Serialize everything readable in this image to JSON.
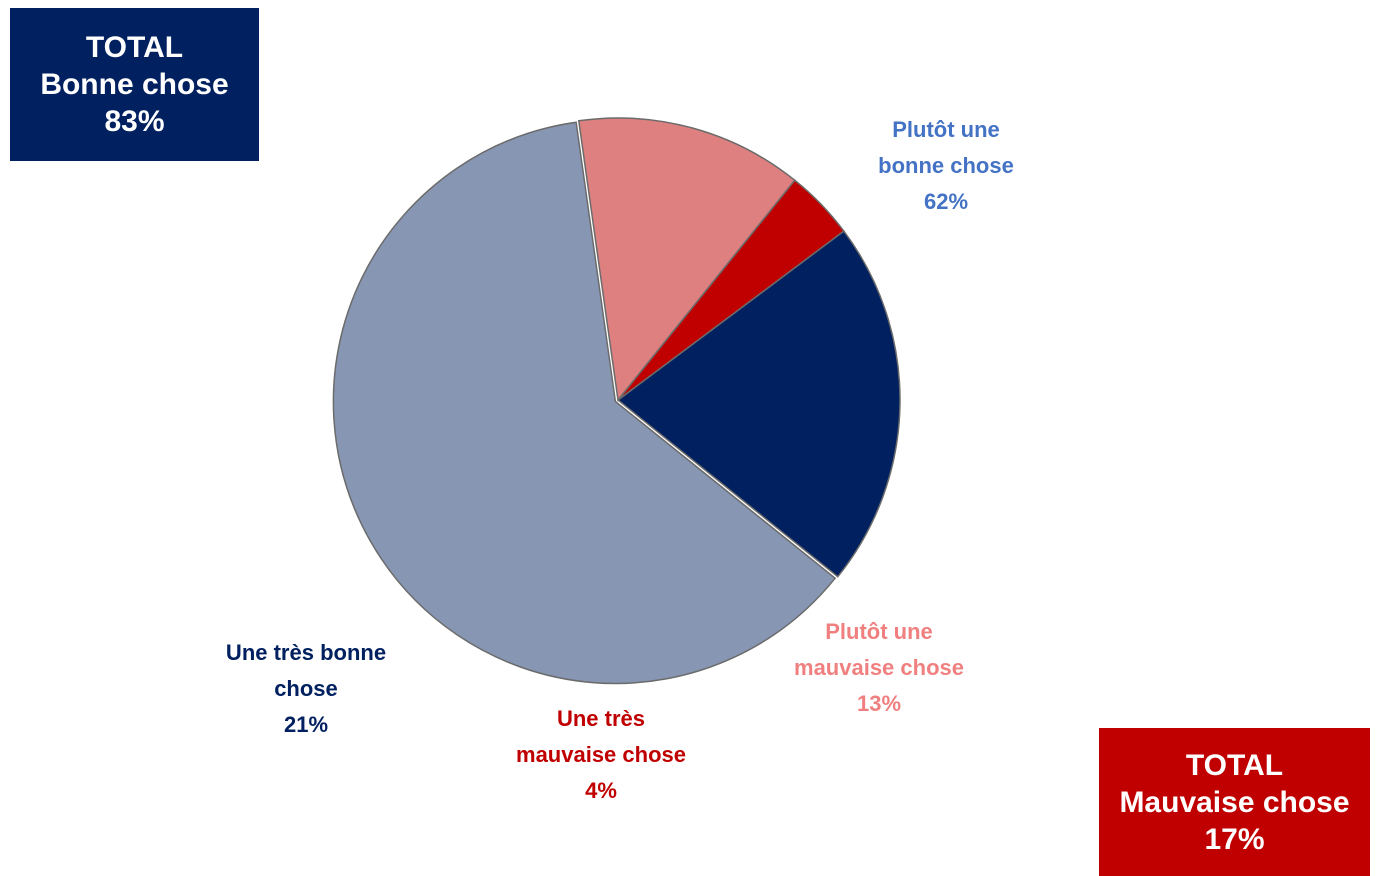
{
  "total_good": {
    "line1": "TOTAL",
    "line2": "Bonne chose",
    "line3": "83%",
    "color": "#002060"
  },
  "total_bad": {
    "line1": "TOTAL",
    "line2": "Mauvaise chose",
    "line3": "17%",
    "color": "#C00000"
  },
  "chart_data": {
    "type": "pie",
    "title": "",
    "start_angle_deg": 98,
    "direction": "counterclockwise",
    "slices": [
      {
        "label_lines": [
          "Plutôt une",
          "bonne chose"
        ],
        "value": 62,
        "value_label": "62%",
        "color": "#8796B3",
        "text_color": "#4472C4"
      },
      {
        "label_lines": [
          "Une très bonne",
          "chose"
        ],
        "value": 21,
        "value_label": "21%",
        "color": "#002060",
        "text_color": "#002060"
      },
      {
        "label_lines": [
          "Une très",
          "mauvaise chose"
        ],
        "value": 4,
        "value_label": "4%",
        "color": "#C00000",
        "text_color": "#C00000"
      },
      {
        "label_lines": [
          "Plutôt une",
          "mauvaise chose"
        ],
        "value": 13,
        "value_label": "13%",
        "color": "#DF8080",
        "text_color": "#F08080"
      }
    ]
  }
}
